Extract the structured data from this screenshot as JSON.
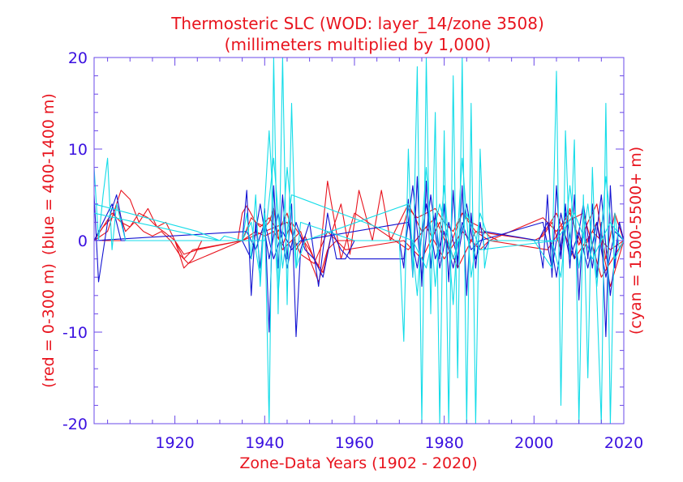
{
  "chart_data": {
    "type": "line",
    "title": "Thermosteric SLC (WOD: layer_14/zone 3508)",
    "subtitle": "(millimeters multiplied by 1,000)",
    "xlabel": "Zone-Data Years (1902 - 2020)",
    "ylabel_left_red": "(red = 0-300 m)",
    "ylabel_left_blue": "(blue = 400-1400 m)",
    "ylabel_right": "(cyan = 1500-5500+ m)",
    "xlim": [
      1902,
      2020
    ],
    "ylim": [
      -20,
      20
    ],
    "x_ticks": [
      1920,
      1940,
      1960,
      1980,
      2000,
      2020
    ],
    "y_ticks": [
      -20,
      -10,
      0,
      10,
      20
    ],
    "x_tick_labels": [
      "1920",
      "1940",
      "1960",
      "1980",
      "2000",
      "2020"
    ],
    "y_tick_labels": [
      "-20",
      "-10",
      "0",
      "10",
      "20"
    ],
    "grid": false,
    "colors": {
      "red": "#e8141e",
      "blue": "#1414d2",
      "cyan": "#14dce8",
      "axis": "#3a10e0"
    },
    "series": [
      {
        "color": "red",
        "x": [
          1902,
          1904,
          1906,
          1908,
          1910,
          1912,
          1914,
          1916,
          1918,
          1920,
          1922,
          1924,
          1926,
          1928,
          1930,
          1932,
          1934,
          1935,
          1936,
          1938,
          1940,
          1941,
          1942,
          1943,
          1944,
          1946,
          1948,
          1950,
          1952,
          1954,
          1956,
          1958,
          1960,
          1962,
          1964,
          1966,
          1968,
          1970,
          1972,
          1974,
          1976,
          1978,
          1980,
          1982,
          1984,
          1986,
          1988,
          1990,
          1992,
          1994,
          1996,
          1998,
          2000,
          2002,
          2004,
          2006,
          2008,
          2010,
          2012,
          2014,
          2016,
          2018,
          2020
        ],
        "y": [
          0,
          1.5,
          2.5,
          5.5,
          4.5,
          2,
          3.5,
          1.5,
          0.8,
          0,
          -3,
          -2,
          0,
          0,
          0,
          0,
          0,
          3,
          3.8,
          2,
          1.5,
          2,
          3.5,
          0.5,
          -1,
          0,
          1,
          -2,
          -4.5,
          -1,
          0,
          0,
          0,
          0,
          0,
          0,
          0,
          0,
          3.5,
          2.5,
          3,
          3.5,
          2,
          1,
          3,
          2,
          1.5,
          0.5,
          0,
          0,
          0,
          0,
          0,
          0.5,
          2,
          -1,
          3.5,
          -0.5,
          2,
          4,
          -2,
          3,
          0
        ]
      },
      {
        "color": "red",
        "x": [
          1902,
          1906,
          1908,
          1910,
          1912,
          1914,
          1916,
          1918,
          1920,
          1922,
          1924,
          1935,
          1937,
          1939,
          1941,
          1943,
          1945,
          1947,
          1949,
          1951,
          1953,
          1955,
          1957,
          1959,
          1961,
          1964,
          1966,
          1968,
          1972,
          1975,
          1978,
          1981,
          1984,
          1987,
          1990,
          2002,
          2005,
          2008,
          2011,
          2014,
          2017,
          2020
        ],
        "y": [
          0,
          3,
          2,
          1.5,
          3,
          2.5,
          1.5,
          2,
          0,
          -2,
          -1,
          0,
          2.5,
          1.5,
          2.5,
          1,
          3,
          -1,
          0.5,
          -2,
          -3.5,
          1,
          4,
          -1.5,
          5.5,
          0,
          5.5,
          0,
          4,
          1,
          2.5,
          -1,
          3,
          1,
          0,
          2.5,
          1,
          3,
          -1,
          2,
          -5,
          0
        ]
      },
      {
        "color": "red",
        "x": [
          1902,
          1905,
          1907,
          1909,
          1911,
          1913,
          1915,
          1917,
          1919,
          1921,
          1923,
          1935,
          1938,
          1940,
          1942,
          1944,
          1946,
          1950,
          1952,
          1954,
          1957,
          1960,
          1972,
          1976,
          1980,
          1984,
          1988,
          1990,
          2003,
          2007,
          2011,
          2015,
          2020
        ],
        "y": [
          0,
          1,
          4,
          1,
          2,
          1,
          0.5,
          1,
          0,
          -1.5,
          -2.5,
          0,
          1,
          0.5,
          1,
          -0.5,
          2,
          -1,
          -3,
          6.5,
          -2,
          3,
          -1,
          1.5,
          -2,
          1,
          -1,
          0,
          -1,
          2,
          3,
          -4,
          0
        ]
      },
      {
        "color": "red",
        "x": [
          1902,
          1920,
          1922,
          1925,
          1935,
          1945,
          1948,
          1951,
          1954,
          1958,
          1971,
          1975,
          1979,
          1983,
          1987,
          2001,
          2005,
          2009,
          2013,
          2017,
          2020
        ],
        "y": [
          0,
          0,
          -1.5,
          -1,
          0,
          2,
          -1.5,
          -2.5,
          1,
          -1,
          0,
          -2,
          2,
          -3,
          1,
          0,
          3,
          -2,
          1,
          -1,
          0
        ]
      },
      {
        "color": "blue",
        "x": [
          1902,
          1903,
          1905,
          1907,
          1909,
          1935,
          1936,
          1937,
          1938,
          1939,
          1940,
          1941,
          1942,
          1943,
          1944,
          1945,
          1946,
          1947,
          1948,
          1950,
          1952,
          1954,
          1956,
          1958,
          1960,
          1970,
          1971,
          1972,
          1973,
          1974,
          1975,
          1976,
          1977,
          1978,
          1979,
          1980,
          1981,
          1982,
          1983,
          1984,
          1985,
          1986,
          1987,
          1988,
          1989,
          1990,
          2001,
          2002,
          2003,
          2004,
          2005,
          2006,
          2007,
          2008,
          2009,
          2010,
          2011,
          2012,
          2013,
          2014,
          2015,
          2016,
          2017,
          2018,
          2019,
          2020
        ],
        "y": [
          5,
          -4.5,
          2,
          5,
          0,
          0,
          5.5,
          -6,
          2,
          -3,
          3.5,
          -10,
          6,
          -3,
          5,
          -2,
          4,
          -10.5,
          -1,
          2,
          -5,
          3,
          -2,
          -2,
          0,
          0,
          -3,
          4.5,
          -4,
          7,
          -5,
          6.5,
          -3,
          3,
          -2,
          4,
          -4.5,
          5.5,
          -3,
          6,
          -6,
          3,
          -3,
          2,
          -1,
          0,
          0,
          -3,
          5,
          -4,
          6,
          -2,
          4,
          -3,
          5,
          -6.5,
          3,
          -2,
          4,
          -4,
          2,
          -10.5,
          6,
          -3,
          2,
          0
        ]
      },
      {
        "color": "blue",
        "x": [
          1902,
          1906,
          1908,
          1935,
          1937,
          1939,
          1941,
          1943,
          1945,
          1947,
          1949,
          1951,
          1953,
          1955,
          1957,
          1959,
          1971,
          1973,
          1975,
          1977,
          1979,
          1981,
          1983,
          1985,
          1987,
          1989,
          2001,
          2003,
          2005,
          2007,
          2009,
          2011,
          2013,
          2015,
          2017,
          2019,
          2020
        ],
        "y": [
          0,
          4,
          0,
          0,
          -2,
          4,
          -2,
          3,
          -3,
          2,
          -1,
          -2,
          -4,
          1,
          -1,
          -2,
          -2,
          6,
          -4,
          5,
          -3,
          2,
          -2,
          4,
          -2,
          1,
          0,
          2,
          -4,
          3,
          -2,
          4,
          -3,
          5,
          -6,
          2,
          0
        ]
      },
      {
        "color": "blue",
        "x": [
          1902,
          1936,
          1938,
          1940,
          1942,
          1944,
          1946,
          1948,
          1972,
          1974,
          1976,
          1978,
          1980,
          1982,
          1984,
          1986,
          1988,
          2002,
          2004,
          2006,
          2008,
          2010,
          2012,
          2014,
          2016,
          2018,
          2020
        ],
        "y": [
          0,
          1,
          -1,
          2,
          -2,
          1,
          -1,
          0,
          2,
          -3,
          4,
          -2,
          1,
          -3,
          2,
          -1,
          0,
          2,
          -3,
          3,
          -2,
          1,
          -3,
          2,
          -4,
          1,
          0
        ]
      },
      {
        "color": "cyan",
        "x": [
          1902,
          1903,
          1904,
          1905,
          1906,
          1907,
          1908,
          1909,
          1930,
          1931,
          1935,
          1936,
          1937,
          1938,
          1939,
          1940,
          1941,
          1942,
          1943,
          1944,
          1945,
          1946,
          1947,
          1948,
          1960,
          1970,
          1971,
          1972,
          1973,
          1974,
          1975,
          1976,
          1977,
          1978,
          1979,
          1980,
          1981,
          1982,
          1983,
          1984,
          1985,
          1986,
          1987,
          1988,
          1989,
          1990,
          2000,
          2004,
          2005,
          2006,
          2007,
          2008,
          2009,
          2010,
          2011,
          2012,
          2013,
          2014,
          2015,
          2016,
          2017,
          2018,
          2019,
          2020
        ],
        "y": [
          8,
          0,
          5,
          9,
          -1,
          4,
          2,
          0,
          0,
          0.5,
          0,
          3,
          -2,
          5,
          -5,
          3,
          -20,
          20,
          -8,
          20,
          -7,
          15,
          -3,
          2,
          0,
          0,
          -11,
          10,
          -4,
          19,
          -20,
          22,
          -8,
          14,
          -20,
          12,
          -20,
          18,
          -15,
          22,
          -20,
          15,
          -20,
          10,
          -3,
          0,
          0,
          -3,
          18.5,
          -18,
          12,
          -2,
          11,
          -20,
          5,
          -15,
          8,
          -6,
          -20,
          15,
          -20,
          3,
          -1,
          0
        ]
      },
      {
        "color": "cyan",
        "x": [
          1902,
          1925,
          1930,
          1935,
          1937,
          1939,
          1941,
          1943,
          1945,
          1947,
          1949,
          1972,
          1974,
          1976,
          1978,
          1980,
          1982,
          1984,
          1986,
          1988,
          1990,
          2004,
          2006,
          2008,
          2010,
          2012,
          2014,
          2016,
          2018,
          2020
        ],
        "y": [
          4,
          1,
          0,
          0,
          2,
          -4,
          12,
          -6,
          8,
          -3,
          0,
          4,
          -6,
          8,
          -5,
          6,
          -7,
          9,
          -4,
          3,
          0,
          0,
          -4,
          6,
          -3,
          4,
          -5,
          7,
          -2,
          0
        ]
      },
      {
        "color": "cyan",
        "x": [
          1902,
          1930,
          1940,
          1942,
          1944,
          1946,
          1973,
          1976,
          1979,
          1982,
          1985,
          1988,
          2005,
          2009,
          2013,
          2017,
          2020
        ],
        "y": [
          3,
          0,
          0,
          9,
          -3,
          5,
          0,
          -3,
          4,
          -2,
          3,
          -1,
          0,
          3,
          -2,
          2,
          0
        ]
      }
    ]
  }
}
